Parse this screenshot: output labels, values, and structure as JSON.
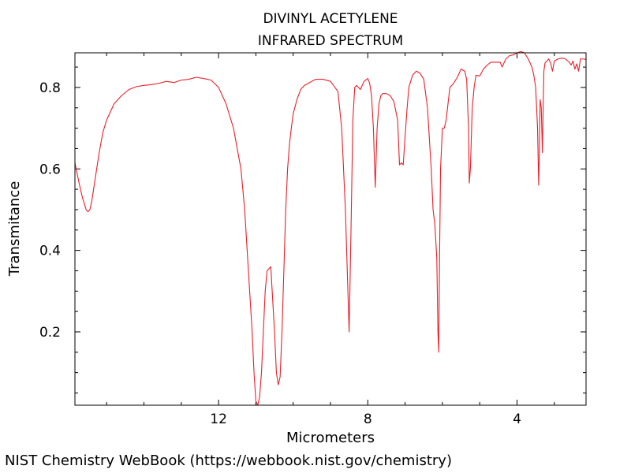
{
  "chart_data": {
    "type": "line",
    "title": "DIVINYL ACETYLENE",
    "subtitle": "INFRARED SPECTRUM",
    "xlabel": "Micrometers",
    "ylabel": "Transmitance",
    "x_reversed": true,
    "xlim": [
      15.85,
      2.15
    ],
    "ylim": [
      0.02,
      0.885
    ],
    "x_ticks": [
      12,
      8,
      4
    ],
    "y_ticks": [
      0.2,
      0.4,
      0.6,
      0.8
    ],
    "grid": false,
    "line_color": "#e8202a",
    "series": [
      {
        "x": [
          15.85,
          15.75,
          15.65,
          15.55,
          15.5,
          15.45,
          15.4,
          15.3,
          15.2,
          15.1,
          15.0,
          14.8,
          14.6,
          14.4,
          14.2,
          14.0,
          13.8,
          13.6,
          13.4,
          13.2,
          13.0,
          12.8,
          12.6,
          12.4,
          12.2,
          12.0,
          11.8,
          11.6,
          11.4,
          11.3,
          11.2,
          11.1,
          11.05,
          11.0,
          10.95,
          10.9,
          10.85,
          10.8,
          10.75,
          10.7,
          10.6,
          10.5,
          10.45,
          10.4,
          10.35,
          10.3,
          10.25,
          10.2,
          10.15,
          10.1,
          10.05,
          10.0,
          9.9,
          9.8,
          9.7,
          9.6,
          9.5,
          9.4,
          9.2,
          9.0,
          8.8,
          8.7,
          8.6,
          8.5,
          8.45,
          8.4,
          8.35,
          8.3,
          8.2,
          8.1,
          8.0,
          7.95,
          7.9,
          7.85,
          7.8,
          7.75,
          7.7,
          7.65,
          7.6,
          7.5,
          7.4,
          7.3,
          7.2,
          7.15,
          7.1,
          7.05,
          7.0,
          6.95,
          6.9,
          6.8,
          6.7,
          6.6,
          6.5,
          6.4,
          6.3,
          6.25,
          6.2,
          6.15,
          6.12,
          6.1,
          6.08,
          6.05,
          6.0,
          5.95,
          5.9,
          5.8,
          5.7,
          5.6,
          5.5,
          5.4,
          5.35,
          5.3,
          5.28,
          5.25,
          5.2,
          5.15,
          5.1,
          5.0,
          4.9,
          4.8,
          4.7,
          4.6,
          4.5,
          4.45,
          4.4,
          4.3,
          4.2,
          4.1,
          4.0,
          3.9,
          3.8,
          3.7,
          3.6,
          3.55,
          3.5,
          3.45,
          3.42,
          3.4,
          3.38,
          3.35,
          3.32,
          3.3,
          3.28,
          3.25,
          3.2,
          3.15,
          3.1,
          3.05,
          3.0,
          2.9,
          2.8,
          2.7,
          2.6,
          2.55,
          2.5,
          2.45,
          2.4,
          2.35,
          2.3,
          2.2,
          2.15
        ],
        "y": [
          0.615,
          0.57,
          0.53,
          0.5,
          0.495,
          0.5,
          0.52,
          0.58,
          0.64,
          0.69,
          0.72,
          0.76,
          0.78,
          0.795,
          0.802,
          0.805,
          0.807,
          0.81,
          0.815,
          0.812,
          0.818,
          0.82,
          0.825,
          0.822,
          0.818,
          0.8,
          0.76,
          0.7,
          0.6,
          0.5,
          0.35,
          0.2,
          0.1,
          0.03,
          0.02,
          0.04,
          0.1,
          0.2,
          0.3,
          0.35,
          0.36,
          0.2,
          0.1,
          0.07,
          0.09,
          0.2,
          0.35,
          0.5,
          0.6,
          0.66,
          0.7,
          0.735,
          0.77,
          0.795,
          0.805,
          0.81,
          0.815,
          0.82,
          0.82,
          0.815,
          0.79,
          0.7,
          0.5,
          0.2,
          0.45,
          0.72,
          0.8,
          0.805,
          0.795,
          0.815,
          0.822,
          0.81,
          0.78,
          0.7,
          0.555,
          0.7,
          0.76,
          0.78,
          0.785,
          0.785,
          0.78,
          0.765,
          0.72,
          0.61,
          0.615,
          0.61,
          0.68,
          0.745,
          0.8,
          0.83,
          0.84,
          0.835,
          0.82,
          0.75,
          0.6,
          0.5,
          0.46,
          0.38,
          0.2,
          0.15,
          0.35,
          0.6,
          0.7,
          0.7,
          0.72,
          0.8,
          0.81,
          0.825,
          0.845,
          0.84,
          0.82,
          0.7,
          0.565,
          0.6,
          0.75,
          0.8,
          0.83,
          0.828,
          0.845,
          0.855,
          0.862,
          0.862,
          0.862,
          0.862,
          0.85,
          0.87,
          0.878,
          0.88,
          0.885,
          0.888,
          0.885,
          0.87,
          0.85,
          0.83,
          0.8,
          0.7,
          0.56,
          0.65,
          0.77,
          0.75,
          0.64,
          0.75,
          0.84,
          0.86,
          0.865,
          0.87,
          0.86,
          0.84,
          0.865,
          0.87,
          0.872,
          0.87,
          0.862,
          0.855,
          0.865,
          0.845,
          0.858,
          0.84,
          0.87,
          0.87,
          0.868
        ]
      }
    ]
  },
  "footer": {
    "source": "NIST Chemistry WebBook (https://webbook.nist.gov/chemistry)"
  }
}
